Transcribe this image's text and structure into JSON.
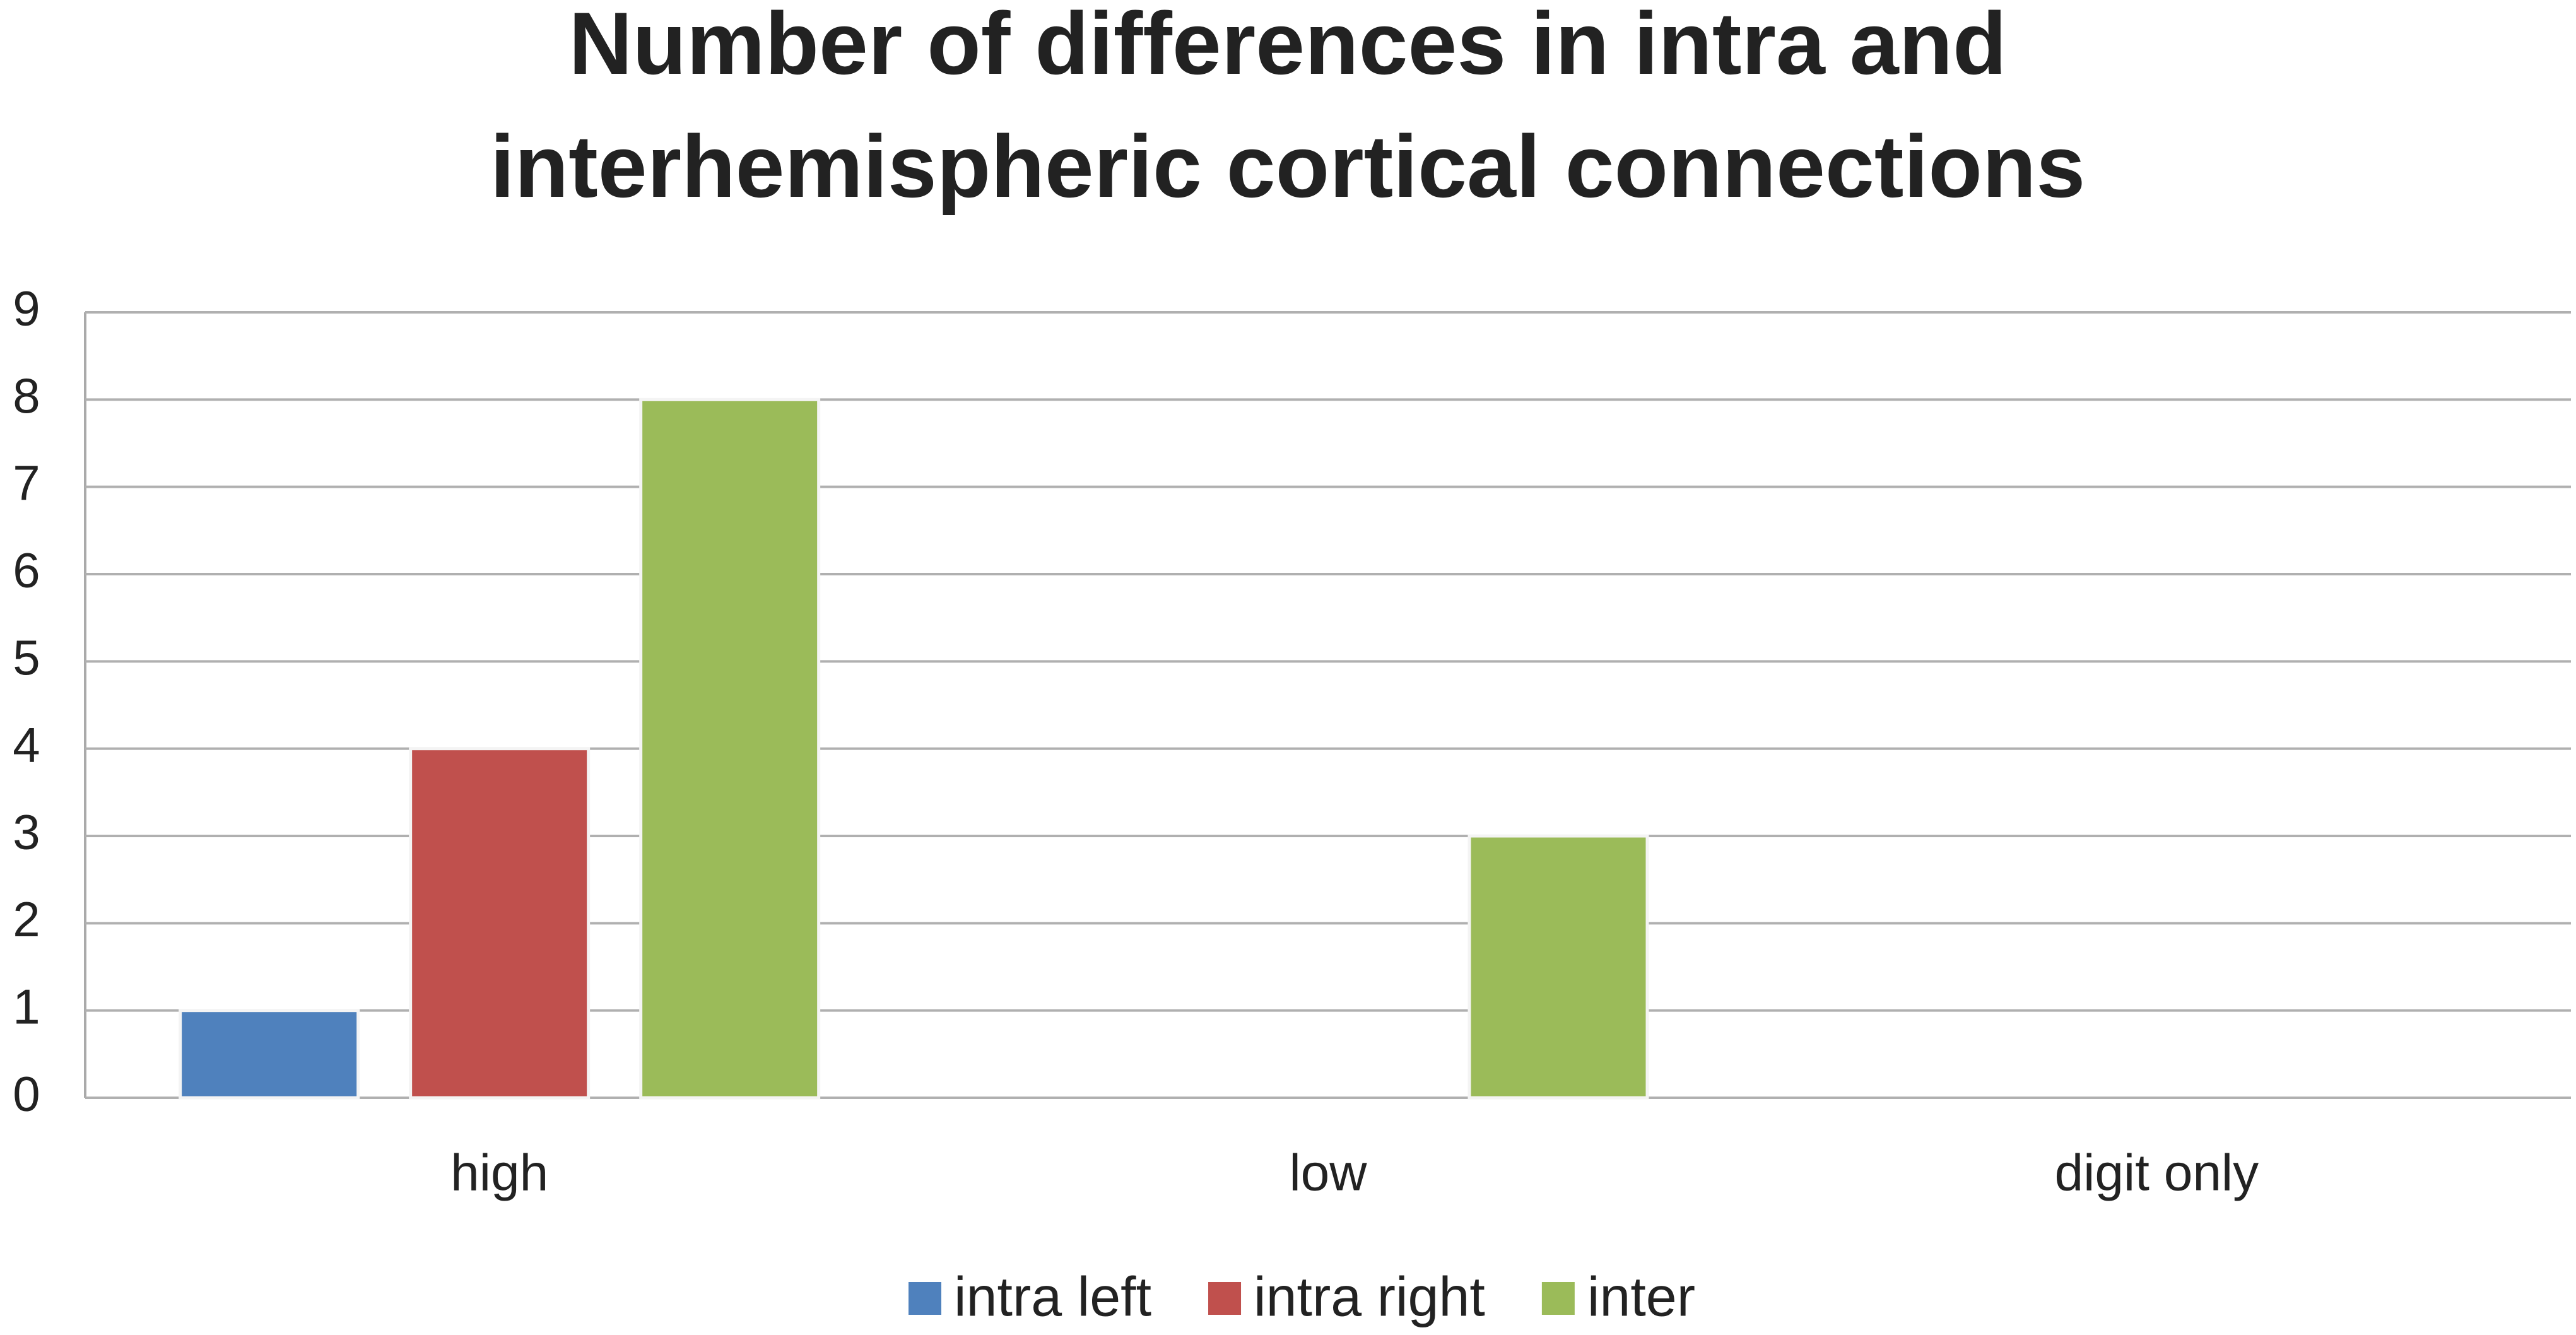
{
  "chart_data": {
    "type": "bar",
    "title": [
      "Number of differences in intra and",
      "interhemispheric cortical connections"
    ],
    "categories": [
      "high",
      "low",
      "digit only"
    ],
    "series": [
      {
        "name": "intra left",
        "color": "#4f81bd",
        "values": [
          1,
          0,
          0
        ]
      },
      {
        "name": "intra right",
        "color": "#c0504d",
        "values": [
          4,
          0,
          0
        ]
      },
      {
        "name": "inter",
        "color": "#9bbb59",
        "values": [
          8,
          3,
          0
        ]
      }
    ],
    "ylim": [
      0,
      9
    ],
    "yticks": [
      0,
      1,
      2,
      3,
      4,
      5,
      6,
      7,
      8,
      9
    ],
    "grid": true,
    "legend": "bottom"
  }
}
